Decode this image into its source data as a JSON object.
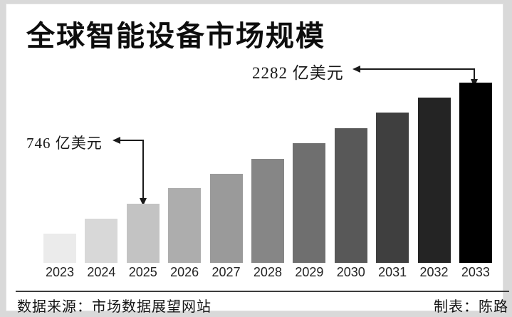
{
  "title": "全球智能设备市场规模",
  "annotations": {
    "top": {
      "label": "2282 亿美元",
      "target_year": "2033"
    },
    "left": {
      "label": "746 亿美元",
      "target_year": "2025"
    }
  },
  "footer": {
    "source": "数据来源：市场数据展望网站",
    "credit": "制表：陈路"
  },
  "chart_data": {
    "type": "bar",
    "title": "全球智能设备市场规模",
    "unit": "亿美元",
    "categories": [
      "2023",
      "2024",
      "2025",
      "2026",
      "2027",
      "2028",
      "2029",
      "2030",
      "2031",
      "2032",
      "2033"
    ],
    "values": [
      370,
      560,
      746,
      945,
      1130,
      1320,
      1515,
      1705,
      1900,
      2090,
      2282
    ],
    "labeled_values": {
      "2025": 746,
      "2033": 2282
    },
    "values_note": "only 2025 (746) and 2033 (2282) carry data labels; other values estimated from bar heights",
    "ylim": [
      0,
      2282
    ],
    "grid": false,
    "legend": false,
    "bar_colors": [
      "#ebebeb",
      "#d8d8d8",
      "#c3c3c3",
      "#adadad",
      "#9a9a9a",
      "#868686",
      "#6f6f6f",
      "#585858",
      "#3f3f3f",
      "#242424",
      "#000000"
    ],
    "colors": {
      "text": "#141414",
      "arrow": "#1a1a1a",
      "background": "#ffffff",
      "frame": "#d9d9d9"
    }
  }
}
